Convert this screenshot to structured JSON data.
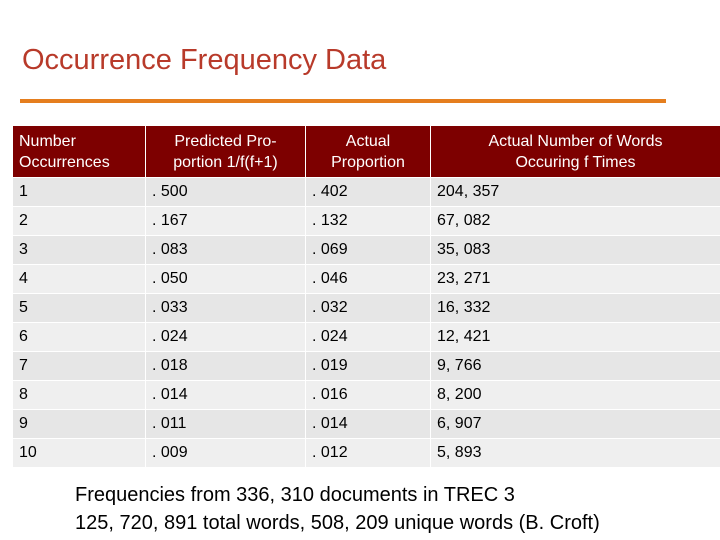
{
  "title": "Occurrence Frequency Data",
  "table": {
    "header": [
      "Number\nOccurrences",
      "Predicted Pro-\nportion 1/f(f+1)",
      "Actual\nProportion",
      "Actual Number of Words\nOccuring f Times"
    ],
    "rows": [
      [
        "1",
        ". 500",
        ". 402",
        "204, 357"
      ],
      [
        "2",
        ". 167",
        ". 132",
        "67, 082"
      ],
      [
        "3",
        ". 083",
        ". 069",
        "35, 083"
      ],
      [
        "4",
        ". 050",
        ". 046",
        "23, 271"
      ],
      [
        "5",
        ". 033",
        ". 032",
        "16, 332"
      ],
      [
        "6",
        ". 024",
        ". 024",
        "12, 421"
      ],
      [
        "7",
        ". 018",
        ". 019",
        "9, 766"
      ],
      [
        "8",
        ". 014",
        ". 016",
        "8, 200"
      ],
      [
        "9",
        ". 011",
        ". 014",
        "6, 907"
      ],
      [
        "10",
        ". 009",
        ". 012",
        "5, 893"
      ]
    ]
  },
  "footer": [
    "Frequencies from 336, 310 documents in TREC 3",
    "125, 720, 891 total words, 508, 209 unique words (B. Croft)"
  ]
}
